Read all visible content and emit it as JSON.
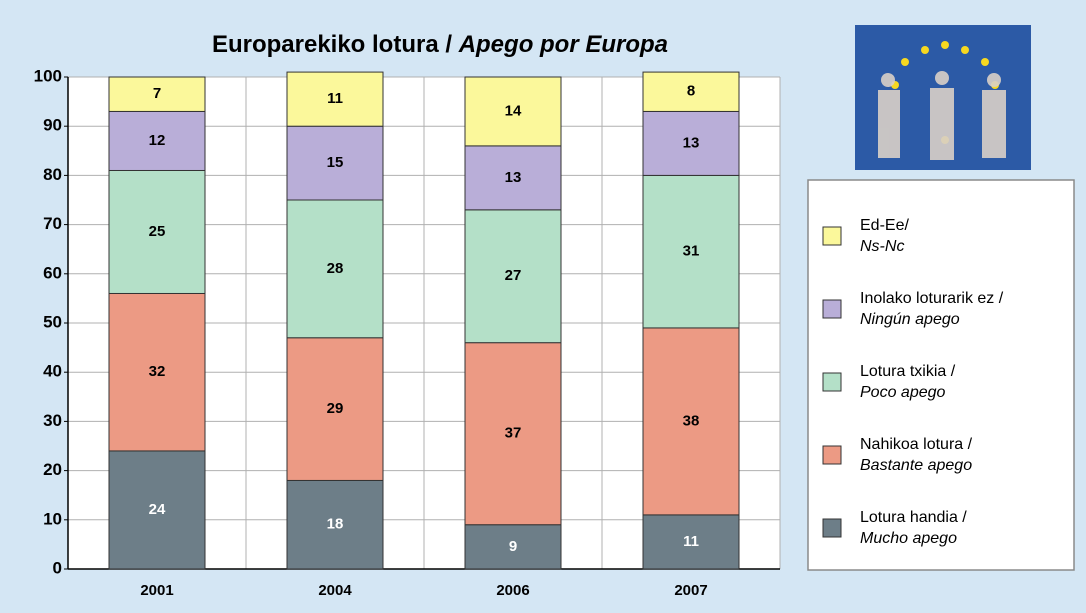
{
  "chart_data": {
    "type": "stacked_bar",
    "title": [
      "Europarekiko lotura / ",
      "Apego por Europa"
    ],
    "categories": [
      "2001",
      "2004",
      "2006",
      "2007"
    ],
    "series": [
      {
        "name": [
          "Lotura handia /",
          "Mucho apego"
        ],
        "color": "#6d7e88",
        "values": [
          24,
          18,
          9,
          11
        ]
      },
      {
        "name": [
          "Nahikoa lotura /",
          "Bastante apego"
        ],
        "color": "#ec9a84",
        "values": [
          32,
          29,
          37,
          38
        ]
      },
      {
        "name": [
          "Lotura txikia /",
          "Poco apego"
        ],
        "color": "#b4e0c8",
        "values": [
          25,
          28,
          27,
          31
        ]
      },
      {
        "name": [
          "Inolako loturarik ez /",
          "Ningún apego"
        ],
        "color": "#b9aed8",
        "values": [
          12,
          15,
          13,
          13
        ]
      },
      {
        "name": [
          "Ed-Ee/",
          "Ns-Nc"
        ],
        "color": "#fbf89b",
        "values": [
          7,
          11,
          14,
          8
        ]
      }
    ],
    "ylim": [
      0,
      100
    ],
    "yticks": [
      0,
      10,
      20,
      30,
      40,
      50,
      60,
      70,
      80,
      90,
      100
    ],
    "grid": true
  }
}
